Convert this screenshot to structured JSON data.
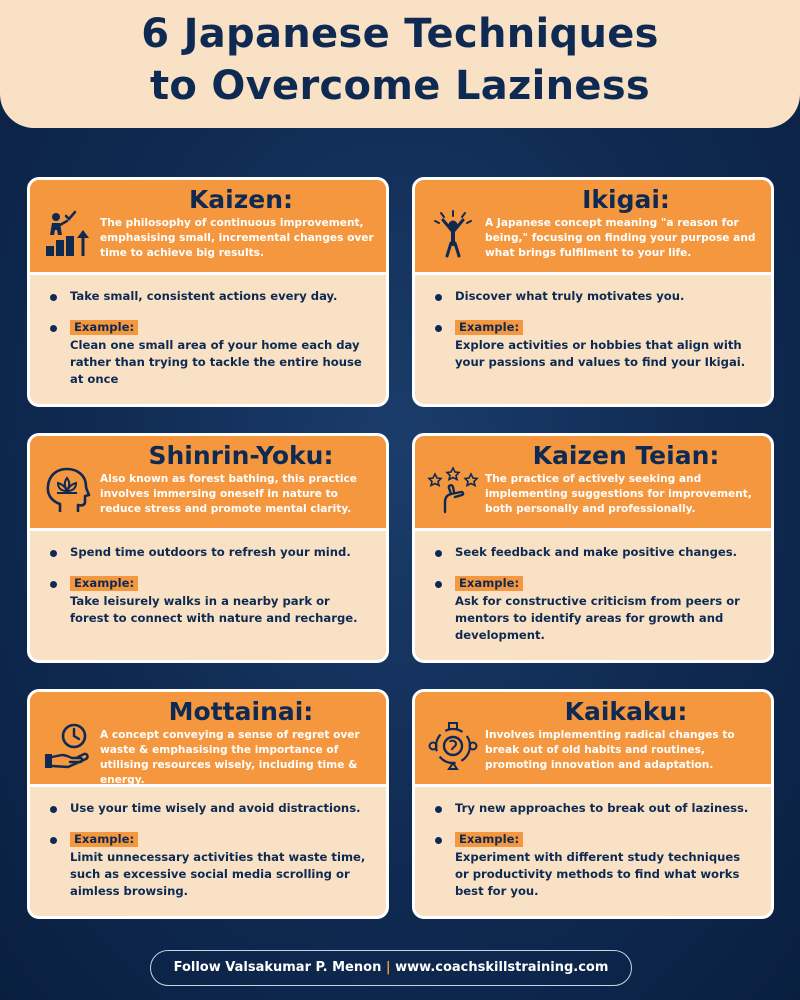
{
  "title": {
    "line1": "6 Japanese Techniques",
    "line2": "to Overcome Laziness"
  },
  "colors": {
    "accent_orange": "#f4973f",
    "cream": "#f8e1c5",
    "navy": "#0f2a52"
  },
  "cards": [
    {
      "name": "Kaizen:",
      "icon": "growth-steps-icon",
      "description": "The philosophy of continuous improvement, emphasising small, incremental changes over time to achieve big results.",
      "tip": "Take small, consistent actions every day.",
      "example_label": "Example:",
      "example": "Clean one small area of your home each day rather than trying to tackle the entire house at once"
    },
    {
      "name": "Ikigai:",
      "icon": "celebrating-person-icon",
      "description": "A Japanese concept meaning \"a reason for being,\" focusing on finding your purpose and what brings fulfilment to your life.",
      "tip": "Discover what truly motivates you.",
      "example_label": "Example:",
      "example": "Explore activities or hobbies that align with your passions and values to find your Ikigai."
    },
    {
      "name": "Shinrin-Yoku:",
      "icon": "head-lotus-icon",
      "description": "Also known as forest bathing, this practice involves immersing oneself in nature to reduce stress and promote mental clarity.",
      "tip": "Spend time outdoors to refresh your mind.",
      "example_label": "Example:",
      "example": "Take leisurely walks in a nearby park or forest to connect with nature and recharge."
    },
    {
      "name": "Kaizen Teian:",
      "icon": "hand-stars-icon",
      "description": "The practice of actively seeking and implementing suggestions for improvement, both personally and professionally.",
      "tip": "Seek feedback and make positive changes.",
      "example_label": "Example:",
      "example": "Ask for constructive criticism from peers or mentors to identify areas for growth and development."
    },
    {
      "name": "Mottainai:",
      "icon": "clock-hand-icon",
      "description": "A concept conveying a sense of regret over waste & emphasising the importance of utilising resources wisely, including time & energy.",
      "tip": "Use your time wisely and avoid distractions.",
      "example_label": "Example:",
      "example": "Limit unnecessary activities that waste time, such as excessive social media scrolling or aimless browsing."
    },
    {
      "name": "Kaikaku:",
      "icon": "head-cycle-icon",
      "description": "Involves implementing radical changes to break out of old habits and routines, promoting innovation and adaptation.",
      "tip": "Try new approaches to break out of laziness.",
      "example_label": "Example:",
      "example": "Experiment with different study techniques or productivity methods to find what works best for you."
    }
  ],
  "footer": {
    "follow": "Follow Valsakumar P. Menon",
    "separator": "|",
    "website": "www.coachskillstraining.com"
  }
}
